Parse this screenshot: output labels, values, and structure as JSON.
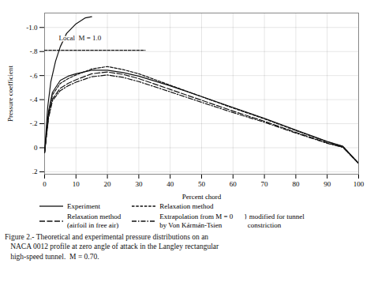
{
  "chart_data": {
    "type": "line",
    "title": "Figure 2.- Theoretical and experimental pressure distributions on an\n   NACA 0012 profile at zero angle of attack in the Langley rectangular\n   high-speed tunnel.  M = 0.70.",
    "xlabel": "Percent chord",
    "ylabel": "Pressure coefficient",
    "xlim": [
      0,
      100
    ],
    "ylim": [
      0.22,
      -1.12
    ],
    "xticks": [
      0,
      10,
      20,
      30,
      40,
      50,
      60,
      70,
      80,
      90,
      100
    ],
    "yticks": [
      {
        "value": -1.0,
        "label": "-1.0"
      },
      {
        "value": -0.8,
        "label": "-.8"
      },
      {
        "value": -0.6,
        "label": "-.6"
      },
      {
        "value": -0.4,
        "label": "-.4"
      },
      {
        "value": -0.2,
        "label": "-.2"
      },
      0,
      {
        "value": 0.2,
        "label": ".2"
      }
    ],
    "grid": true,
    "legend": "bottom",
    "color": "#111111",
    "series": [
      {
        "name": "Experiment",
        "line_style": "solid",
        "x": [
          0,
          1.25,
          2.5,
          5,
          7.5,
          10,
          15,
          20,
          25,
          30,
          40,
          50,
          60,
          70,
          80,
          90,
          95,
          100
        ],
        "values": [
          0.04,
          -0.3,
          -0.46,
          -0.56,
          -0.595,
          -0.615,
          -0.645,
          -0.645,
          -0.625,
          -0.595,
          -0.515,
          -0.425,
          -0.335,
          -0.245,
          -0.148,
          -0.052,
          -0.012,
          0.13
        ]
      },
      {
        "name": "Relaxation method",
        "line_style": "dashed",
        "x": [
          0,
          1.25,
          2.5,
          5,
          7.5,
          10,
          15,
          20,
          25,
          30,
          40,
          50,
          60,
          70,
          80,
          90,
          95,
          100
        ],
        "values": [
          0.04,
          -0.28,
          -0.44,
          -0.535,
          -0.575,
          -0.605,
          -0.655,
          -0.675,
          -0.65,
          -0.615,
          -0.52,
          -0.425,
          -0.33,
          -0.24,
          -0.143,
          -0.05,
          -0.01,
          0.13
        ]
      },
      {
        "name": "Relaxation method\n(airfoil in free air)",
        "line_style": "long_dashed",
        "x": [
          0,
          1.25,
          2.5,
          5,
          7.5,
          10,
          15,
          20,
          25,
          30,
          40,
          50,
          60,
          70,
          80,
          90,
          95,
          100
        ],
        "values": [
          0.04,
          -0.255,
          -0.405,
          -0.495,
          -0.535,
          -0.565,
          -0.615,
          -0.63,
          -0.61,
          -0.575,
          -0.485,
          -0.395,
          -0.305,
          -0.22,
          -0.128,
          -0.04,
          -0.005,
          0.13
        ]
      },
      {
        "name": "Extrapolation from M = 0\nby Von Kármán-Tsien",
        "line_style": "dashdot",
        "x": [
          0,
          1.25,
          2.5,
          5,
          7.5,
          10,
          15,
          20,
          25,
          30,
          40,
          50,
          60,
          70,
          80,
          90,
          95,
          100
        ],
        "values": [
          0.04,
          -0.245,
          -0.39,
          -0.475,
          -0.515,
          -0.545,
          -0.59,
          -0.605,
          -0.585,
          -0.55,
          -0.465,
          -0.378,
          -0.292,
          -0.212,
          -0.122,
          -0.037,
          -0.003,
          0.13
        ]
      },
      {
        "line_style": "solid",
        "x": [
          0,
          1.0,
          2.0,
          3.5,
          5,
          7,
          10,
          13,
          15
        ],
        "values": [
          0.04,
          -0.34,
          -0.55,
          -0.72,
          -0.84,
          -0.95,
          -1.03,
          -1.08,
          -1.09
        ]
      },
      {
        "line_style": "dashed",
        "x": [
          0,
          32
        ],
        "values": [
          -0.81,
          -0.81
        ]
      }
    ],
    "annotations": [
      {
        "text": "Local  M = 1.0",
        "x": 4.5,
        "y": -0.895
      },
      {
        "text": "} modified for tunnel\n  constriction"
      }
    ]
  }
}
